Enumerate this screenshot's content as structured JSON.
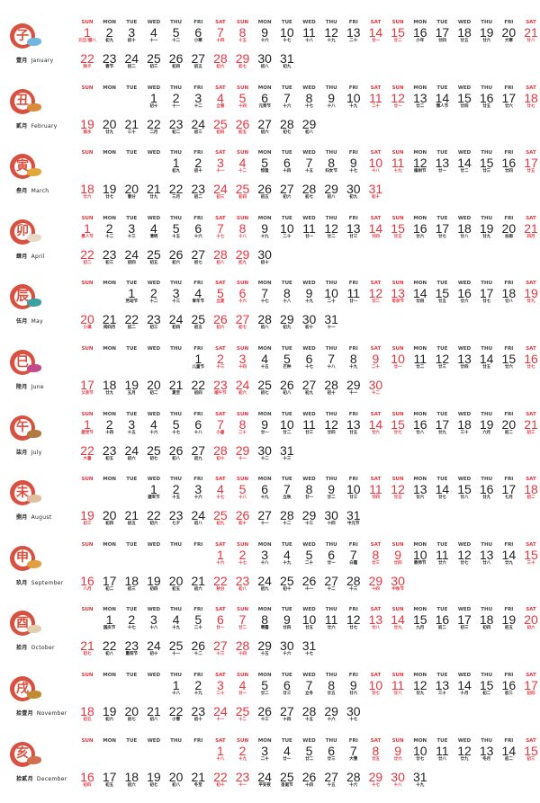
{
  "weekdays": [
    "SUN",
    "MON",
    "TUE",
    "WED",
    "THU",
    "FRI",
    "SAT",
    "SUN",
    "MON",
    "TUE",
    "WED",
    "THU",
    "FRI",
    "SAT",
    "SUN",
    "MON",
    "TUE",
    "WED",
    "THU",
    "FRI",
    "SAT"
  ],
  "colors": {
    "weekend": "#e8343c",
    "text": "#222222",
    "logo": "#d8503f"
  },
  "months": [
    {
      "cn": "壹月",
      "en": "January",
      "branch": "子",
      "start_col": 0,
      "lunar": [
        "元旦/腊八",
        "初九",
        "初十",
        "十一",
        "十二",
        "小寒",
        "十四",
        "十五",
        "十六",
        "十七",
        "十八",
        "十九",
        "二十",
        "廿一",
        "廿二",
        "小年",
        "廿四",
        "廿五",
        "廿六",
        "大寒",
        "廿八",
        "除夕",
        "春节",
        "初二",
        "初三",
        "初四",
        "初五",
        "初六",
        "初七",
        "初八",
        "初九"
      ]
    },
    {
      "cn": "貳月",
      "en": "February",
      "branch": "丑",
      "start_col": 3,
      "lunar": [
        "初十",
        "十一",
        "十二",
        "立春",
        "十四",
        "元宵节",
        "十六",
        "十七",
        "十八",
        "十九",
        "二十",
        "廿一",
        "廿二",
        "情人节",
        "廿四",
        "廿五",
        "廿六",
        "廿七",
        "雨水",
        "廿九",
        "三十",
        "二月",
        "初二",
        "初三",
        "初四",
        "初五",
        "初六",
        "初七",
        "初八"
      ]
    },
    {
      "cn": "叁月",
      "en": "March",
      "branch": "寅",
      "start_col": 4,
      "lunar": [
        "初九",
        "初十",
        "十一",
        "十二",
        "惊蛰",
        "十四",
        "十五",
        "妇女节",
        "十七",
        "十八",
        "十九",
        "植树节",
        "廿一",
        "廿二",
        "廿三",
        "廿四",
        "廿五",
        "廿六",
        "廿七",
        "春分",
        "廿九",
        "三月",
        "初二",
        "初三",
        "初四",
        "初五",
        "初六",
        "初七",
        "初八",
        "初九",
        "初十"
      ]
    },
    {
      "cn": "肆月",
      "en": "April",
      "branch": "卯",
      "start_col": 0,
      "lunar": [
        "愚人节",
        "十二",
        "十三",
        "清明",
        "十五",
        "十六",
        "十七",
        "十八",
        "十九",
        "二十",
        "廿一",
        "廿二",
        "廿三",
        "廿四",
        "廿五",
        "廿六",
        "廿七",
        "廿八",
        "廿九",
        "谷雨",
        "四月",
        "初二",
        "初三",
        "初四",
        "初五",
        "初六",
        "初七",
        "初八",
        "初九",
        "初十"
      ]
    },
    {
      "cn": "伍月",
      "en": "May",
      "branch": "辰",
      "start_col": 2,
      "lunar": [
        "劳动节",
        "十二",
        "十三",
        "青年节",
        "立夏",
        "十六",
        "十七",
        "十八",
        "十九",
        "二十",
        "廿一",
        "廿二",
        "母亲节",
        "廿四",
        "廿五",
        "廿六",
        "廿七",
        "廿八",
        "廿九",
        "小满",
        "闰四月",
        "初二",
        "初三",
        "初四",
        "初五",
        "初六",
        "初七",
        "初八",
        "初九",
        "初十",
        "十一"
      ]
    },
    {
      "cn": "陸月",
      "en": "June",
      "branch": "巳",
      "start_col": 5,
      "lunar": [
        "儿童节",
        "十三",
        "十四",
        "十五",
        "芒种",
        "十七",
        "十八",
        "十九",
        "二十",
        "廿一",
        "廿二",
        "廿三",
        "廿四",
        "廿五",
        "廿六",
        "廿七",
        "父亲节",
        "廿九",
        "五月",
        "初二",
        "夏至",
        "初四",
        "端午节",
        "初六",
        "初七",
        "初八",
        "初九",
        "初十",
        "十一",
        "十二"
      ]
    },
    {
      "cn": "柒月",
      "en": "July",
      "branch": "午",
      "start_col": 0,
      "lunar": [
        "建党节",
        "十四",
        "十五",
        "十六",
        "十七",
        "十八",
        "小暑",
        "二十",
        "廿一",
        "廿二",
        "廿三",
        "廿四",
        "廿五",
        "廿六",
        "廿七",
        "廿八",
        "廿九",
        "三十",
        "六月",
        "初二",
        "初三",
        "大暑",
        "初五",
        "初六",
        "初七",
        "初八",
        "初九",
        "初十",
        "十一",
        "十二",
        "十三"
      ]
    },
    {
      "cn": "捌月",
      "en": "August",
      "branch": "未",
      "start_col": 3,
      "lunar": [
        "建军节",
        "十五",
        "十六",
        "十七",
        "十八",
        "十九",
        "立秋",
        "廿一",
        "廿二",
        "廿三",
        "廿四",
        "廿五",
        "廿六",
        "廿七",
        "廿八",
        "廿九",
        "七月",
        "初二",
        "初三",
        "初四",
        "初五",
        "初六",
        "七夕",
        "初八",
        "初九",
        "初十",
        "十一",
        "十二",
        "十三",
        "十四",
        "中元节"
      ]
    },
    {
      "cn": "玖月",
      "en": "September",
      "branch": "申",
      "start_col": 6,
      "lunar": [
        "十六",
        "十七",
        "十八",
        "十九",
        "二十",
        "廿一",
        "白露",
        "廿三",
        "廿四",
        "教师节",
        "廿六",
        "廿七",
        "廿八",
        "廿九",
        "三十",
        "八月",
        "初二",
        "初三",
        "初四",
        "初五",
        "初六",
        "秋分",
        "初八",
        "初九",
        "初十",
        "十一",
        "十二",
        "十三",
        "十四",
        "中秋节"
      ]
    },
    {
      "cn": "拾月",
      "en": "October",
      "branch": "酉",
      "start_col": 1,
      "lunar": [
        "国庆节",
        "十七",
        "十八",
        "十九",
        "二十",
        "廿一",
        "廿二",
        "寒露",
        "廿四",
        "廿五",
        "廿六",
        "廿七",
        "廿八",
        "廿九",
        "九月",
        "初二",
        "初三",
        "初四",
        "初五",
        "初六",
        "初七",
        "初八",
        "重阳节",
        "初十",
        "十一",
        "十二",
        "十三",
        "十四",
        "十五",
        "十六",
        "十七"
      ]
    },
    {
      "cn": "拾壹月",
      "en": "November",
      "branch": "戌",
      "start_col": 4,
      "lunar": [
        "十八",
        "十九",
        "二十",
        "廿一",
        "廿二",
        "廿三",
        "立冬",
        "廿五",
        "廿六",
        "廿七",
        "廿八",
        "廿九",
        "三十",
        "十月",
        "初二",
        "初三",
        "初四",
        "初五",
        "初六",
        "初七",
        "初八",
        "小雪",
        "初十",
        "十一",
        "十二",
        "十三",
        "十四",
        "十五",
        "十六",
        "十七"
      ]
    },
    {
      "cn": "拾貳月",
      "en": "December",
      "branch": "亥",
      "start_col": 6,
      "lunar": [
        "十八",
        "十九",
        "二十",
        "廿一",
        "廿二",
        "廿三",
        "大雪",
        "廿五",
        "廿六",
        "廿七",
        "廿八",
        "廿九",
        "冬月",
        "初二",
        "初三",
        "初四",
        "初五",
        "初六",
        "初七",
        "初八",
        "冬至",
        "初十",
        "十一",
        "平安夜",
        "圣诞节",
        "十四",
        "十五",
        "十六",
        "十七",
        "十八",
        "十九"
      ]
    }
  ]
}
